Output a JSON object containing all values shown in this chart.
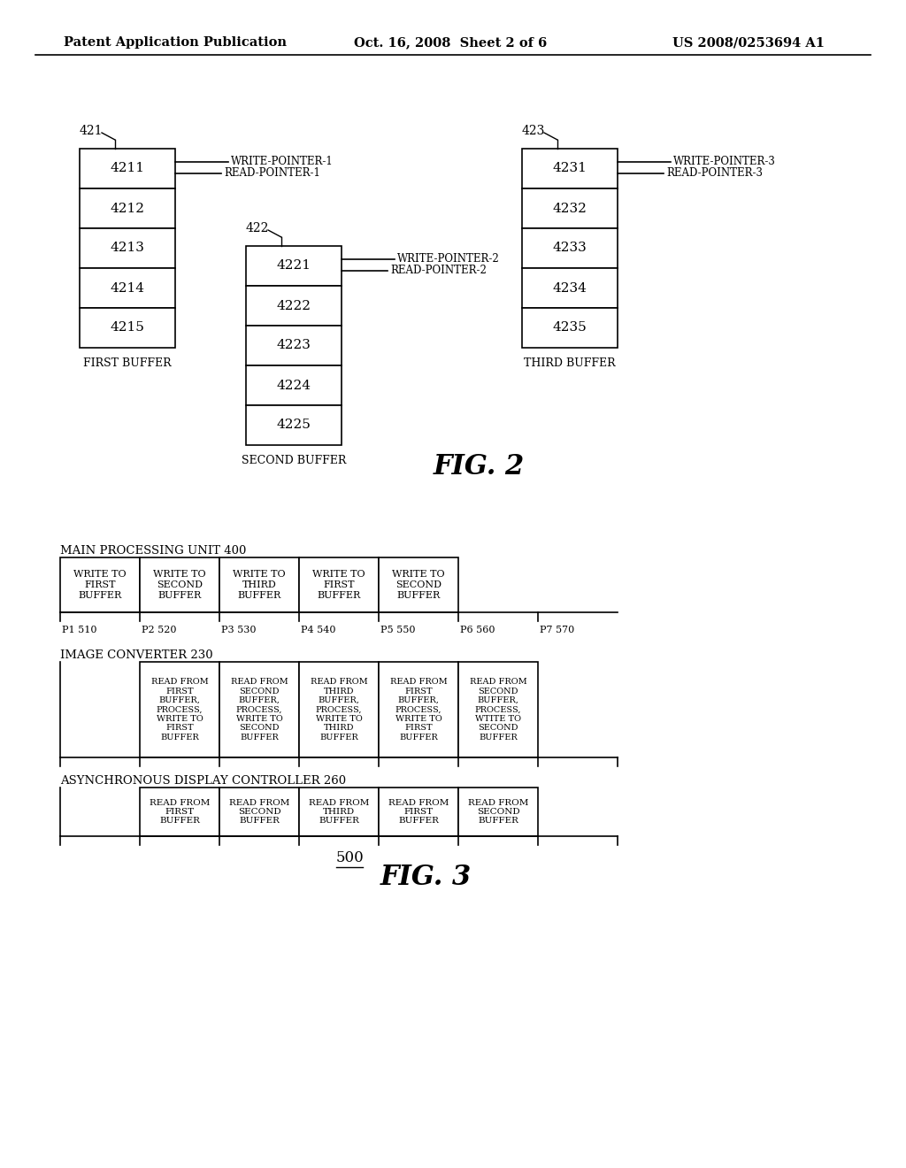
{
  "bg_color": "#ffffff",
  "header_left": "Patent Application Publication",
  "header_mid": "Oct. 16, 2008  Sheet 2 of 6",
  "header_right": "US 2008/0253694 A1",
  "fig2_label": "FIG. 2",
  "fig3_label": "FIG. 3",
  "fig3_number": "500",
  "buffer1_label": "421",
  "buffer1_name": "FIRST BUFFER",
  "buffer1_cells": [
    "4211",
    "4212",
    "4213",
    "4214",
    "4215"
  ],
  "buffer2_label": "422",
  "buffer2_name": "SECOND BUFFER",
  "buffer2_cells": [
    "4221",
    "4222",
    "4223",
    "4224",
    "4225"
  ],
  "buffer3_label": "423",
  "buffer3_name": "THIRD BUFFER",
  "buffer3_cells": [
    "4231",
    "4232",
    "4233",
    "4234",
    "4235"
  ],
  "wp1": "WRITE-POINTER-1",
  "rp1": "READ-POINTER-1",
  "wp2": "WRITE-POINTER-2",
  "rp2": "READ-POINTER-2",
  "wp3": "WRITE-POINTER-3",
  "rp3": "READ-POINTER-3",
  "mpu_label": "MAIN PROCESSING UNIT 400",
  "mpu_cols": [
    "WRITE TO\nFIRST\nBUFFER",
    "WRITE TO\nSECOND\nBUFFER",
    "WRITE TO\nTHIRD\nBUFFER",
    "WRITE TO\nFIRST\nBUFFER",
    "WRITE TO\nSECOND\nBUFFER"
  ],
  "mpu_periods": [
    "P1 510",
    "P2 520",
    "P3 530",
    "P4 540",
    "P5 550",
    "P6 560",
    "P7 570"
  ],
  "ic_label": "IMAGE CONVERTER 230",
  "ic_cols": [
    "READ FROM\nFIRST\nBUFFER,\nPROCESS,\nWRITE TO\nFIRST\nBUFFER",
    "READ FROM\nSECOND\nBUFFER,\nPROCESS,\nWRITE TO\nSECOND\nBUFFER",
    "READ FROM\nTHIRD\nBUFFER,\nPROCESS,\nWRITE TO\nTHIRD\nBUFFER",
    "READ FROM\nFIRST\nBUFFER,\nPROCESS,\nWRITE TO\nFIRST\nBUFFER",
    "READ FROM\nSECOND\nBUFFER,\nPROCESS,\nWTITE TO\nSECOND\nBUFFER"
  ],
  "adc_label": "ASYNCHRONOUS DISPLAY CONTROLLER 260",
  "adc_cols": [
    "READ FROM\nFIRST\nBUFFER",
    "READ FROM\nSECOND\nBUFFER",
    "READ FROM\nTHIRD\nBUFFER",
    "READ FROM\nFIRST\nBUFFER",
    "READ FROM\nSECOND\nBUFFER"
  ]
}
